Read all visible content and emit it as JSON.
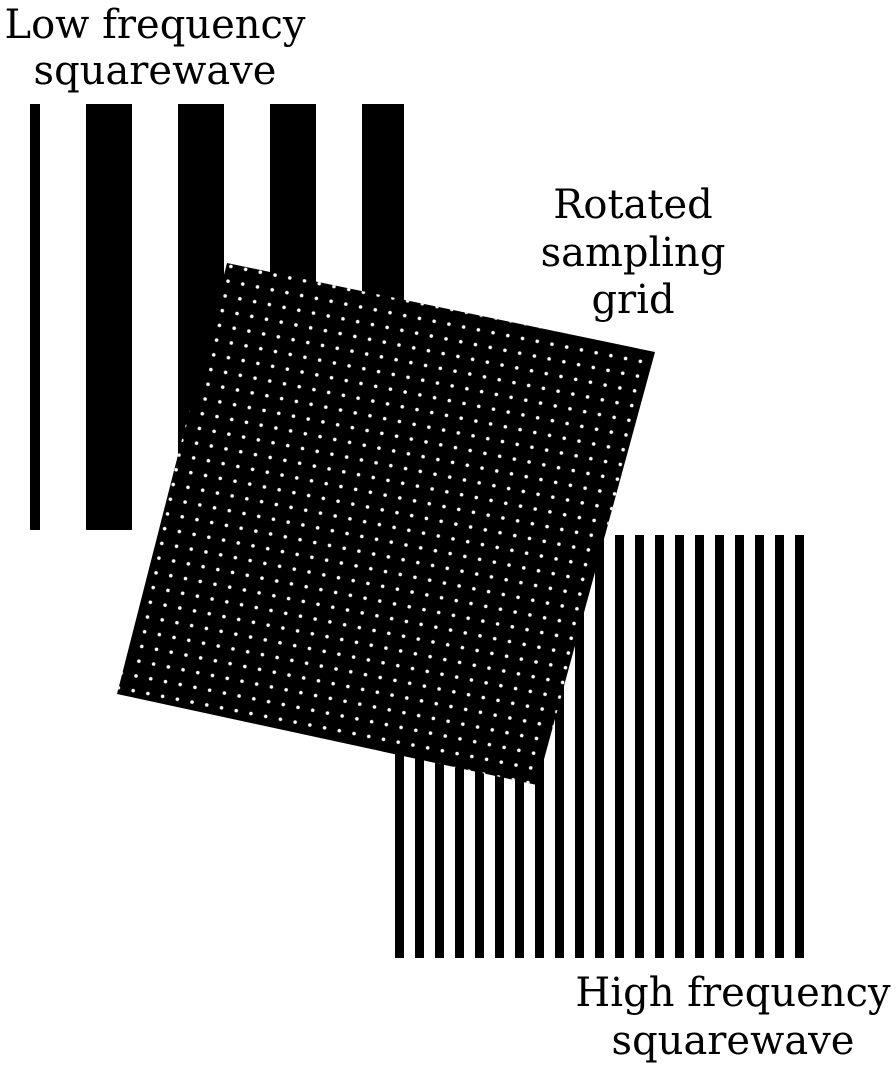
{
  "labels": {
    "low_frequency_line1": "Low frequency",
    "low_frequency_line2": "squarewave",
    "rotated_grid_line1": "Rotated",
    "rotated_grid_line2": "sampling",
    "rotated_grid_line3": "grid",
    "high_frequency_line1": "High frequency",
    "high_frequency_line2": "squarewave"
  },
  "colors": {
    "ink": "#000000",
    "paper": "#ffffff"
  }
}
